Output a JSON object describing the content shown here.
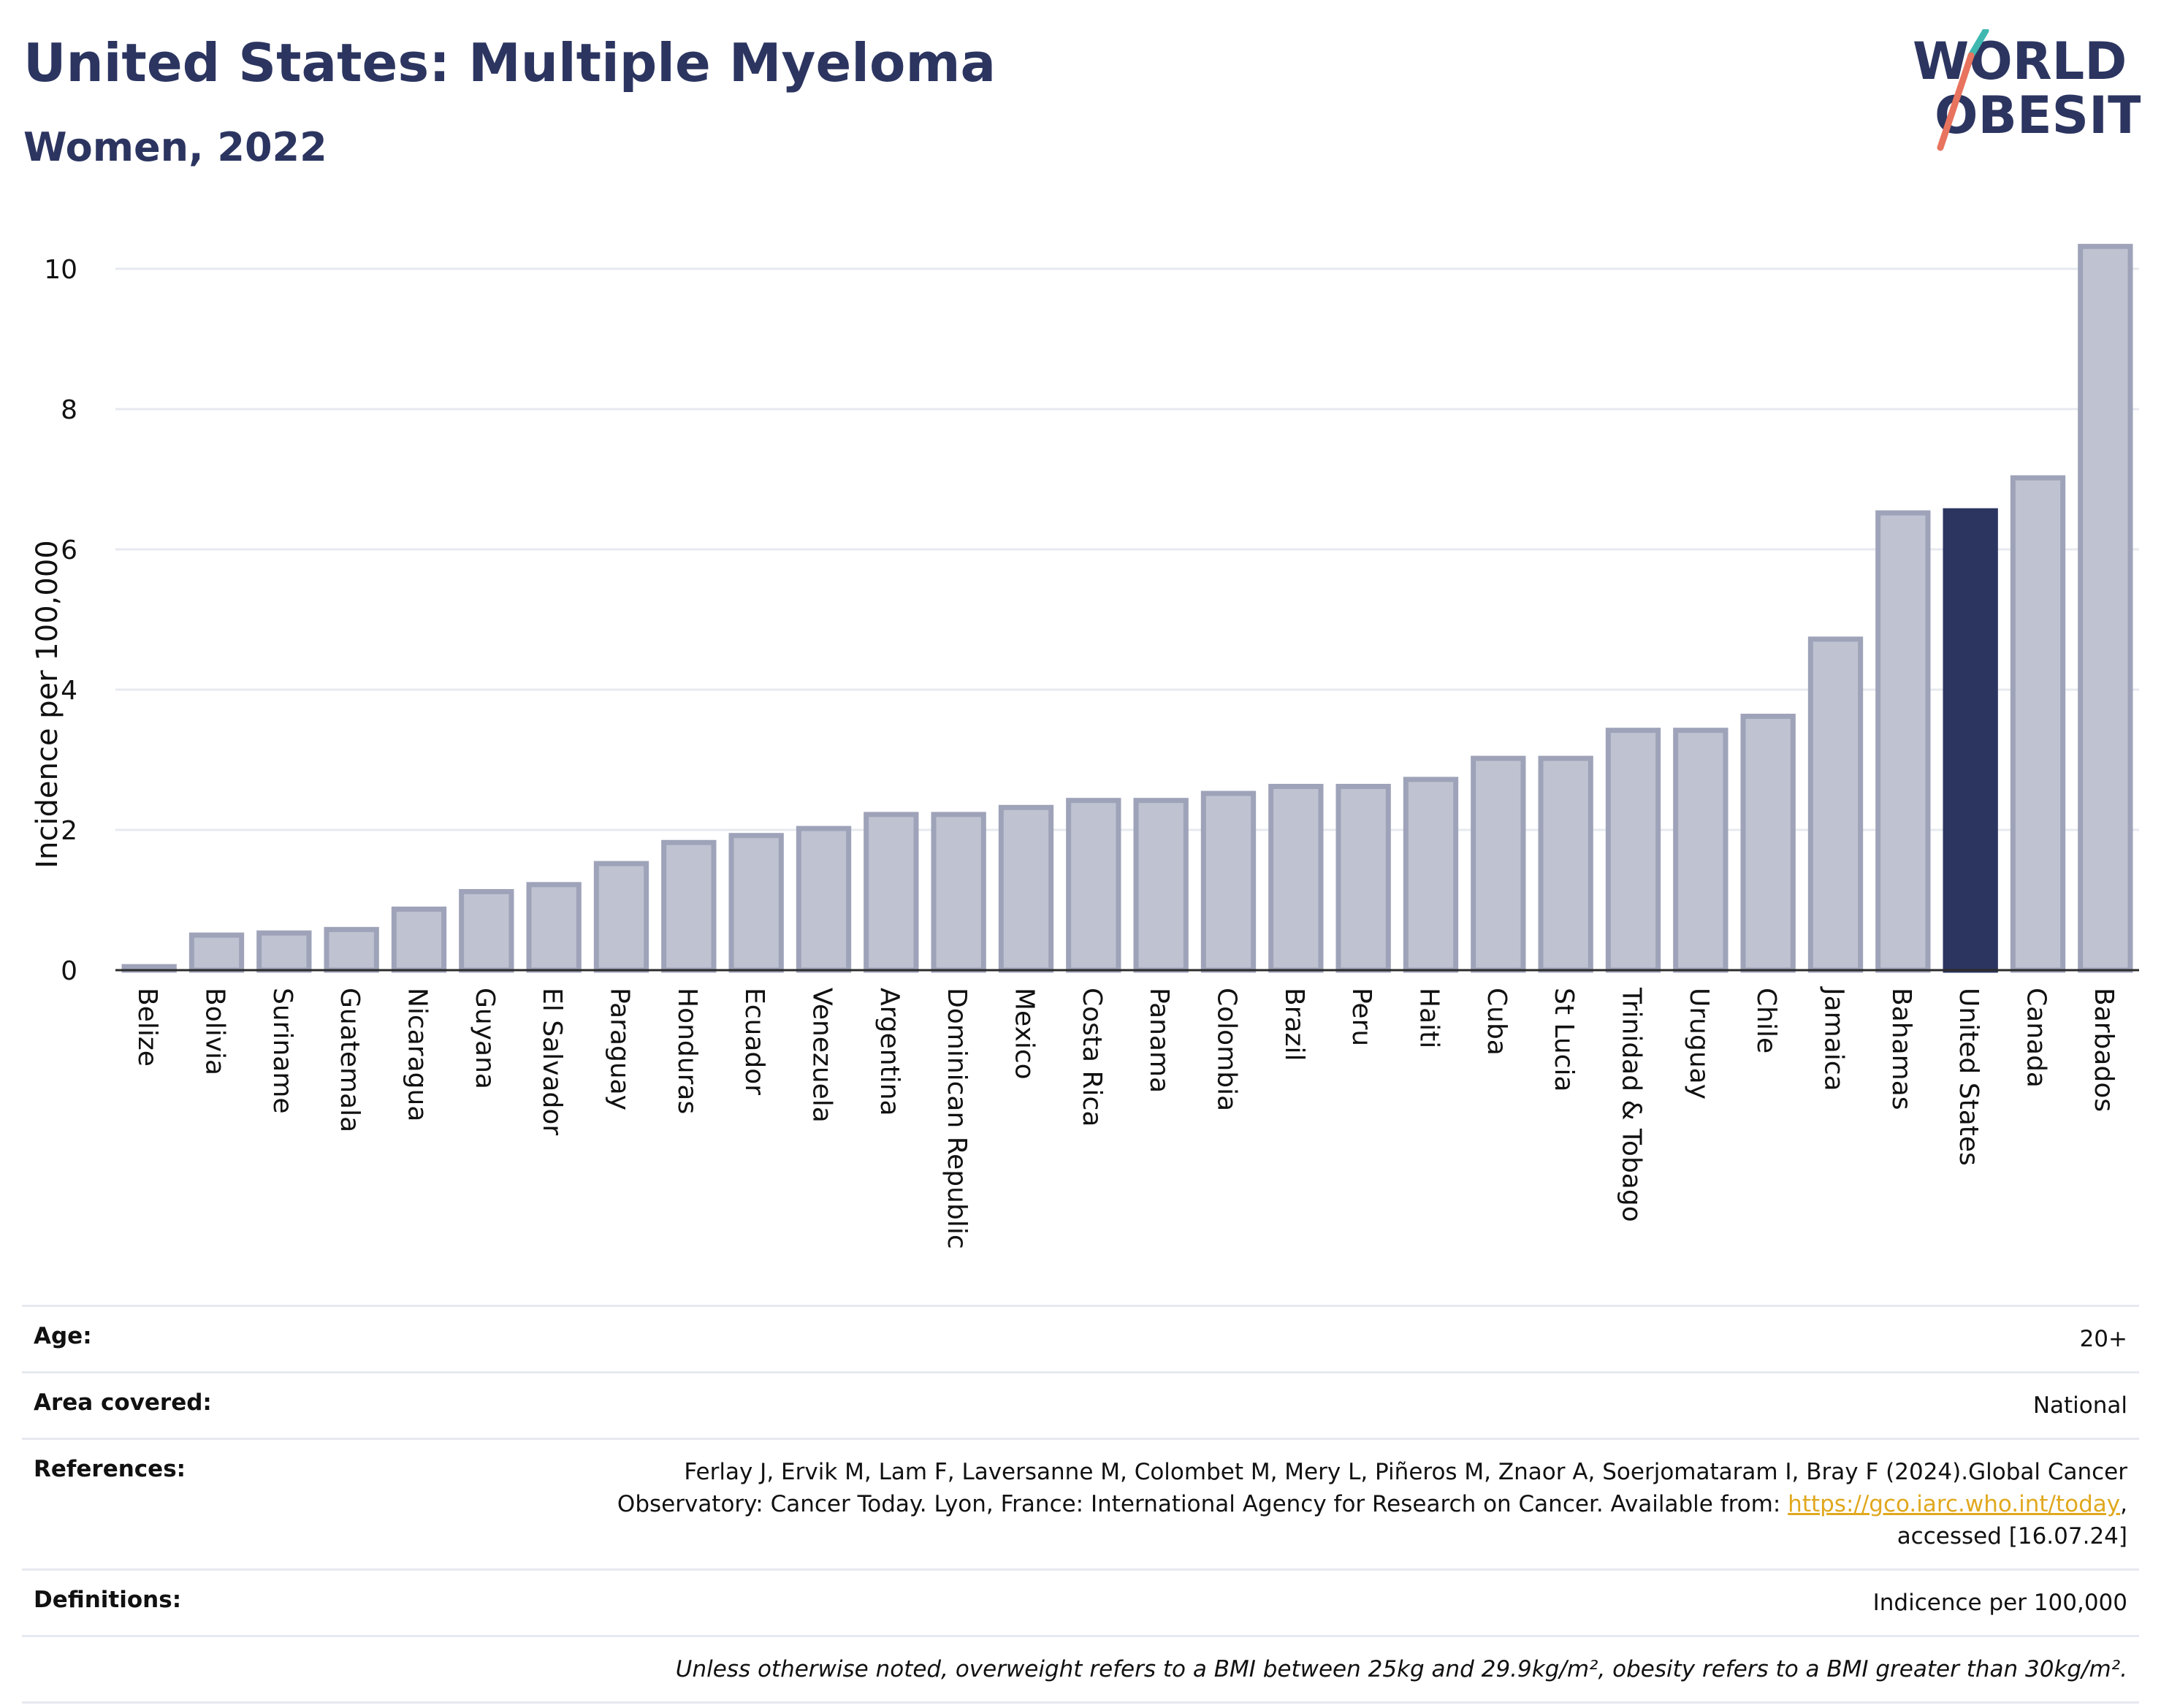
{
  "title": "United States: Multiple Myeloma",
  "subtitle": "Women, 2022",
  "logo": {
    "line1": "WORLD",
    "line2": "OBESITY"
  },
  "colors": {
    "highlight": "#2c3560",
    "bar": "#bfc2d0",
    "bar_stroke": "#9ea3b9",
    "gridline": "#e6e9ef",
    "link": "#e0a81e",
    "logo_teal": "#3fb8b0",
    "logo_coral": "#e8735e"
  },
  "chart_data": {
    "type": "bar",
    "ylabel": "Incidence per 100,000",
    "ylim": [
      0,
      10.5
    ],
    "yticks": [
      0,
      2,
      4,
      6,
      8,
      10
    ],
    "grid": true,
    "highlight": "United States",
    "categories": [
      "Belize",
      "Bolivia",
      "Suriname",
      "Guatemala",
      "Nicaragua",
      "Guyana",
      "El Salvador",
      "Paraguay",
      "Honduras",
      "Ecuador",
      "Venezuela",
      "Argentina",
      "Dominican Republic",
      "Mexico",
      "Costa Rica",
      "Panama",
      "Colombia",
      "Brazil",
      "Peru",
      "Haiti",
      "Cuba",
      "St Lucia",
      "Trinidad & Tobago",
      "Uruguay",
      "Chile",
      "Jamaica",
      "Bahamas",
      "United States",
      "Canada",
      "Barbados"
    ],
    "values": [
      0.05,
      0.5,
      0.53,
      0.58,
      0.87,
      1.12,
      1.22,
      1.52,
      1.82,
      1.92,
      2.02,
      2.22,
      2.22,
      2.32,
      2.42,
      2.42,
      2.52,
      2.62,
      2.62,
      2.72,
      3.02,
      3.02,
      3.42,
      3.42,
      3.62,
      4.72,
      6.52,
      6.55,
      7.02,
      10.32
    ]
  },
  "info": {
    "age_label": "Age:",
    "age_value": "20+",
    "area_label": "Area covered:",
    "area_value": "National",
    "references_label": "References:",
    "references_line1": "Ferlay J, Ervik M, Lam F, Laversanne M, Colombet M, Mery L, Piñeros M, Znaor A, Soerjomataram I, Bray F (2024).Global Cancer",
    "references_line2_pre": "Observatory: Cancer Today. Lyon, France: International Agency for Research on Cancer. Available from: ",
    "references_link": "https://gco.iarc.who.int/today",
    "references_line2_post": ",",
    "references_line3": "accessed [16.07.24]",
    "definitions_label": "Definitions:",
    "definitions_value": "Indicence per 100,000",
    "note": "Unless otherwise noted, overweight refers to a BMI between 25kg and 29.9kg/m², obesity refers to a BMI greater than 30kg/m²."
  }
}
